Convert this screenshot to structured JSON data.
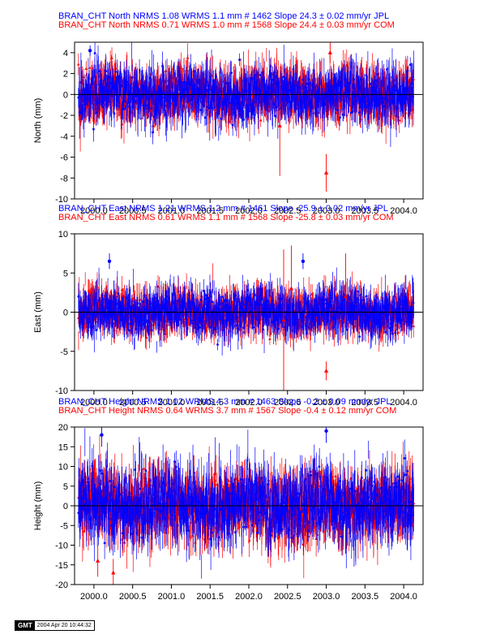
{
  "chart_data": [
    {
      "type": "scatter",
      "ylabel": "North (mm)",
      "ylim": [
        -10,
        5
      ],
      "yticks": [
        -10,
        -8,
        -6,
        -4,
        -2,
        0,
        2,
        4
      ],
      "xlim": [
        1999.75,
        2004.25
      ],
      "xticks": [
        "2000.0",
        "2000.5",
        "2001.0",
        "2001.5",
        "2002.0",
        "2002.5",
        "2003.0",
        "2003.5",
        "2004.0"
      ],
      "header_lines": [
        {
          "text": "BRAN_CHT North NRMS 1.08 WRMS  1.1 mm # 1462 Slope   24.3 ±  0.02 mm/yr JPL",
          "color": "#0000ff"
        },
        {
          "text": "BRAN_CHT North NRMS 0.71 WRMS  1.0 mm # 1568 Slope   24.4 ±  0.03 mm/yr COM",
          "color": "#ff0000"
        }
      ],
      "series": [
        {
          "name": "JPL",
          "color": "#0000ff",
          "marker": "circle",
          "n": 1462,
          "nrms": 1.08,
          "wrms_mm": 1.1,
          "slope_mm_yr": 24.3,
          "slope_sigma": 0.02
        },
        {
          "name": "COM",
          "color": "#ff0000",
          "marker": "triangle",
          "n": 1568,
          "nrms": 0.71,
          "wrms_mm": 1.0,
          "slope_mm_yr": 24.4,
          "slope_sigma": 0.03
        }
      ],
      "data_range_x": [
        1999.8,
        2004.13
      ],
      "spread_sigma": 1.2,
      "err_scale": 1.0,
      "outliers": [
        {
          "x": 2003.0,
          "y": -7.5,
          "series": "COM",
          "err": 1.8
        },
        {
          "x": 2002.4,
          "y": -3.0,
          "series": "COM",
          "err": 4.8
        },
        {
          "x": 2003.05,
          "y": 4.0,
          "series": "COM",
          "err": 1.0
        },
        {
          "x": 1999.95,
          "y": 4.2,
          "series": "JPL",
          "err": 0.5
        }
      ]
    },
    {
      "type": "scatter",
      "ylabel": "East (mm)",
      "ylim": [
        -10,
        10
      ],
      "yticks": [
        -10,
        -5,
        0,
        5,
        10
      ],
      "xlim": [
        1999.75,
        2004.25
      ],
      "xticks": [
        "2000.0",
        "2000.5",
        "2001.0",
        "2001.5",
        "2002.0",
        "2002.5",
        "2003.0",
        "2003.5",
        "2004.0"
      ],
      "header_lines": [
        {
          "text": "BRAN_CHT East NRMS 1.21 WRMS  1.2 mm # 1461 Slope  -25.9 ±  0.02 mm/yr JPL",
          "color": "#0000ff"
        },
        {
          "text": "BRAN_CHT East NRMS 0.61 WRMS  1.1 mm # 1568 Slope  -25.8 ±  0.03 mm/yr COM",
          "color": "#ff0000"
        }
      ],
      "series": [
        {
          "name": "JPL",
          "color": "#0000ff",
          "marker": "circle",
          "n": 1461,
          "nrms": 1.21,
          "wrms_mm": 1.2,
          "slope_mm_yr": -25.9,
          "slope_sigma": 0.02
        },
        {
          "name": "COM",
          "color": "#ff0000",
          "marker": "triangle",
          "n": 1568,
          "nrms": 0.61,
          "wrms_mm": 1.1,
          "slope_mm_yr": -25.8,
          "slope_sigma": 0.03
        }
      ],
      "data_range_x": [
        1999.8,
        2004.13
      ],
      "spread_sigma": 1.3,
      "err_scale": 1.2,
      "outliers": [
        {
          "x": 2003.0,
          "y": -7.5,
          "series": "COM",
          "err": 1.2
        },
        {
          "x": 2000.2,
          "y": 6.5,
          "series": "JPL",
          "err": 1.0
        },
        {
          "x": 2002.45,
          "y": -1.0,
          "series": "COM",
          "err": 9.0
        },
        {
          "x": 2002.55,
          "y": 3.0,
          "series": "COM",
          "err": 5.5
        },
        {
          "x": 2003.25,
          "y": 2.0,
          "series": "COM",
          "err": 5.5
        },
        {
          "x": 2002.7,
          "y": 6.5,
          "series": "JPL",
          "err": 1.0
        }
      ]
    },
    {
      "type": "scatter",
      "ylabel": "Height (mm)",
      "ylim": [
        -20,
        20
      ],
      "yticks": [
        -20,
        -15,
        -10,
        -5,
        0,
        5,
        10,
        15,
        20
      ],
      "xlim": [
        1999.75,
        2004.25
      ],
      "xticks": [
        "2000.0",
        "2000.5",
        "2001.0",
        "2001.5",
        "2002.0",
        "2002.5",
        "2003.0",
        "2003.5",
        "2004.0"
      ],
      "header_lines": [
        {
          "text": "BRAN_CHT Height NRMS 1.02 WRMS  4.3 mm # 1463 Slope   -0.2 ±  0.09 mm/yr JPL",
          "color": "#0000ff"
        },
        {
          "text": "BRAN_CHT Height NRMS 0.64 WRMS  3.7 mm # 1567 Slope   -0.4 ±  0.12 mm/yr COM",
          "color": "#ff0000"
        }
      ],
      "series": [
        {
          "name": "JPL",
          "color": "#0000ff",
          "marker": "circle",
          "n": 1463,
          "nrms": 1.02,
          "wrms_mm": 4.3,
          "slope_mm_yr": -0.2,
          "slope_sigma": 0.09
        },
        {
          "name": "COM",
          "color": "#ff0000",
          "marker": "triangle",
          "n": 1567,
          "nrms": 0.64,
          "wrms_mm": 3.7,
          "slope_mm_yr": -0.4,
          "slope_sigma": 0.12
        }
      ],
      "data_range_x": [
        1999.8,
        2004.13
      ],
      "spread_sigma": 4.3,
      "err_scale": 3.5,
      "outliers": [
        {
          "x": 2000.1,
          "y": 18.0,
          "series": "JPL",
          "err": 3.0
        },
        {
          "x": 2000.05,
          "y": -14.0,
          "series": "COM",
          "err": 4.0
        },
        {
          "x": 2003.0,
          "y": 19.0,
          "series": "JPL",
          "err": 3.0
        },
        {
          "x": 2000.25,
          "y": -17.0,
          "series": "COM",
          "err": 3.5
        }
      ]
    }
  ],
  "footer": {
    "logo": "GMT",
    "timestamp": "2004 Apr 20 10:44:32"
  }
}
